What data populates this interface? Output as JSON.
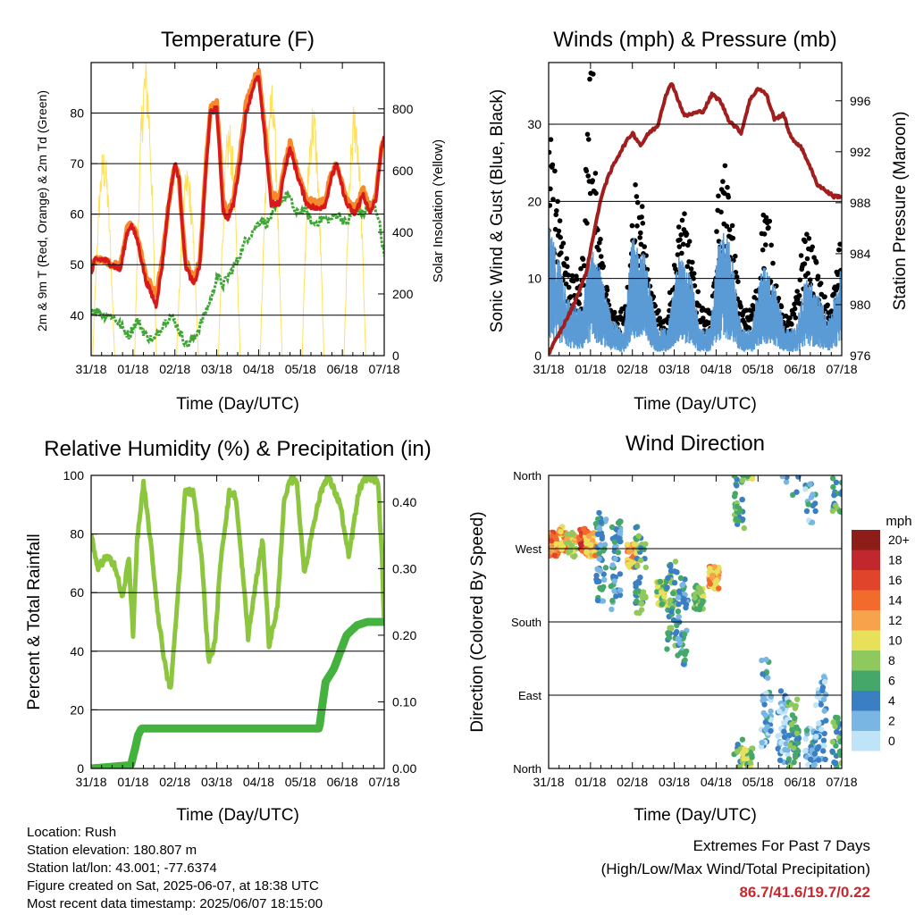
{
  "panels": {
    "temperature": {
      "title": "Temperature (F)",
      "ylabel_left": "2m & 9m T (Red, Orange) & 2m Td (Green)",
      "ylabel_right": "Solar Insolation (Yellow)",
      "xlabel": "Time (Day/UTC)"
    },
    "winds": {
      "title": "Winds (mph) & Pressure (mb)",
      "ylabel_left": "Sonic Wind & Gust (Blue, Black)",
      "ylabel_right": "Station Pressure (Maroon)",
      "xlabel": "Time (Day/UTC)"
    },
    "humidity": {
      "title": "Relative Humidity (%) & Precipitation (in)",
      "ylabel_left": "Percent & Total Rainfall",
      "xlabel": "Time (Day/UTC)"
    },
    "direction": {
      "title": "Wind Direction",
      "ylabel_left": "Direction (Colored By Speed)",
      "xlabel": "Time (Day/UTC)",
      "colorbar_title": "mph"
    }
  },
  "footer": {
    "location": "Location: Rush",
    "elevation": "Station elevation: 180.807 m",
    "latlon": "Station lat/lon: 43.001; -77.6374",
    "created": "Figure created on Sat, 2025-06-07, at 18:38 UTC",
    "latest": "Most recent data timestamp: 2025/06/07 18:15:00",
    "extremes_title": "Extremes For Past 7 Days",
    "extremes_subtitle": "(High/Low/Max Wind/Total Precipitation)",
    "extremes_values": "86.7/41.6/19.7/0.22"
  },
  "chart_data": [
    {
      "id": "temperature",
      "type": "line",
      "x_ticks": [
        "31/18",
        "01/18",
        "02/18",
        "03/18",
        "04/18",
        "05/18",
        "06/18",
        "07/18"
      ],
      "xlim": [
        0,
        7
      ],
      "y_left": {
        "ylim": [
          32,
          90
        ],
        "ticks": [
          40,
          50,
          60,
          70,
          80
        ]
      },
      "y_right": {
        "ylim": [
          0,
          950
        ],
        "ticks": [
          0,
          200,
          400,
          600,
          800
        ]
      },
      "series": [
        {
          "name": "2m T",
          "color": "#d7191c",
          "axis": "left",
          "x": [
            0,
            0.1,
            0.3,
            0.5,
            0.7,
            0.85,
            0.95,
            1.1,
            1.3,
            1.55,
            1.7,
            1.85,
            2.0,
            2.1,
            2.25,
            2.45,
            2.6,
            2.75,
            2.85,
            3.0,
            3.15,
            3.25,
            3.4,
            3.55,
            3.7,
            3.9,
            4.0,
            4.15,
            4.3,
            4.5,
            4.6,
            4.75,
            4.95,
            5.15,
            5.4,
            5.6,
            5.7,
            5.85,
            6.1,
            6.3,
            6.5,
            6.65,
            6.8,
            6.95,
            7.0
          ],
          "y": [
            48,
            51,
            51,
            50,
            49,
            56,
            58,
            55,
            47,
            42,
            50,
            62,
            70,
            67,
            50,
            46,
            50,
            70,
            80,
            81,
            61,
            59,
            62,
            70,
            80,
            86,
            87,
            75,
            62,
            62,
            68,
            73,
            67,
            62,
            61,
            62,
            66,
            70,
            62,
            60,
            64,
            60,
            63,
            74,
            75
          ]
        },
        {
          "name": "9m T",
          "color": "#f7882b",
          "axis": "left",
          "x": [
            0,
            0.1,
            0.3,
            0.5,
            0.7,
            0.85,
            0.95,
            1.1,
            1.3,
            1.55,
            1.7,
            1.85,
            2.0,
            2.1,
            2.25,
            2.45,
            2.6,
            2.75,
            2.85,
            3.0,
            3.15,
            3.25,
            3.4,
            3.55,
            3.7,
            3.9,
            4.0,
            4.15,
            4.3,
            4.5,
            4.6,
            4.75,
            4.95,
            5.15,
            5.4,
            5.6,
            5.7,
            5.85,
            6.1,
            6.3,
            6.5,
            6.65,
            6.8,
            6.95,
            7.0
          ],
          "y": [
            49,
            51,
            51,
            50,
            50,
            57,
            58,
            56,
            48,
            44,
            51,
            62,
            70,
            67,
            51,
            47,
            51,
            71,
            81,
            82,
            63,
            60,
            63,
            72,
            82,
            87,
            88,
            77,
            64,
            63,
            69,
            74,
            68,
            63,
            62,
            63,
            67,
            70,
            63,
            61,
            65,
            61,
            64,
            74,
            75
          ]
        },
        {
          "name": "2m Td",
          "color": "#3fa535",
          "axis": "left",
          "x": [
            0,
            0.1,
            0.3,
            0.5,
            0.7,
            0.9,
            1.1,
            1.3,
            1.5,
            1.7,
            1.9,
            2.05,
            2.15,
            2.3,
            2.5,
            2.7,
            2.9,
            3.0,
            3.15,
            3.3,
            3.5,
            3.7,
            3.9,
            4.05,
            4.2,
            4.4,
            4.55,
            4.7,
            4.9,
            5.1,
            5.3,
            5.5,
            5.7,
            5.9,
            6.1,
            6.3,
            6.5,
            6.7,
            6.85,
            7.0
          ],
          "y": [
            41,
            41,
            40,
            40,
            38,
            36,
            39,
            36,
            35,
            38,
            40,
            38,
            36,
            34,
            36,
            40,
            44,
            48,
            46,
            48,
            51,
            55,
            57,
            59,
            58,
            61,
            63,
            64,
            60,
            61,
            58,
            59,
            59,
            60,
            58,
            61,
            60,
            62,
            60,
            52
          ]
        },
        {
          "name": "Solar Insolation",
          "color": "#ffe15c",
          "axis": "right",
          "peaks_day": [
            0.3,
            1.3,
            2.3,
            3.3,
            4.3,
            5.3,
            6.3
          ],
          "peaks_value": [
            620,
            890,
            560,
            700,
            810,
            760,
            760
          ]
        }
      ]
    },
    {
      "id": "winds",
      "type": "scatter",
      "x_ticks": [
        "31/18",
        "01/18",
        "02/18",
        "03/18",
        "04/18",
        "05/18",
        "06/18",
        "07/18"
      ],
      "xlim": [
        0,
        7
      ],
      "y_left": {
        "ylim": [
          0,
          38
        ],
        "ticks": [
          0,
          10,
          20,
          30
        ]
      },
      "y_right": {
        "ylim": [
          976,
          999
        ],
        "ticks": [
          976,
          980,
          984,
          988,
          992,
          996
        ]
      },
      "series": [
        {
          "name": "Sonic Wind",
          "color": "#5b9bd5",
          "axis": "left",
          "x": [
            0,
            0.3,
            0.5,
            0.8,
            1.0,
            1.2,
            1.5,
            1.8,
            2.0,
            2.3,
            2.6,
            2.85,
            3.1,
            3.4,
            3.6,
            3.85,
            4.1,
            4.35,
            4.6,
            4.85,
            5.1,
            5.4,
            5.65,
            5.9,
            6.15,
            6.4,
            6.7,
            7.0
          ],
          "y": [
            14,
            10,
            6,
            5,
            12,
            10,
            4,
            3,
            13,
            11,
            3,
            3,
            11,
            9,
            3,
            3,
            14,
            12,
            3,
            3,
            10,
            8,
            3,
            3,
            9,
            7,
            4,
            10
          ]
        },
        {
          "name": "Sonic Gust",
          "color": "#000000",
          "axis": "left",
          "x": [
            0,
            0.2,
            0.4,
            0.6,
            0.8,
            0.95,
            1.05,
            1.15,
            1.3,
            1.5,
            1.7,
            1.9,
            2.05,
            2.2,
            2.4,
            2.6,
            2.8,
            3.0,
            3.15,
            3.3,
            3.5,
            3.7,
            3.9,
            4.05,
            4.2,
            4.4,
            4.6,
            4.8,
            5.0,
            5.15,
            5.3,
            5.5,
            5.7,
            5.9,
            6.1,
            6.3,
            6.5,
            6.7,
            6.9,
            7.0
          ],
          "y": [
            25,
            20,
            12,
            8,
            10,
            30,
            35,
            18,
            10,
            5,
            5,
            8,
            20,
            18,
            8,
            5,
            4,
            10,
            16,
            15,
            8,
            5,
            5,
            18,
            21,
            14,
            5,
            5,
            8,
            18,
            14,
            6,
            4,
            6,
            14,
            12,
            8,
            5,
            10,
            15
          ]
        },
        {
          "name": "Station Pressure",
          "color": "#a01e1e",
          "axis": "right",
          "x": [
            0,
            0.3,
            0.6,
            0.9,
            1.1,
            1.3,
            1.55,
            1.8,
            2.0,
            2.2,
            2.4,
            2.6,
            2.8,
            2.95,
            3.1,
            3.25,
            3.45,
            3.7,
            3.9,
            4.1,
            4.3,
            4.6,
            4.8,
            5.0,
            5.2,
            5.4,
            5.6,
            5.8,
            6.0,
            6.2,
            6.4,
            6.6,
            6.8,
            7.0
          ],
          "y": [
            976.2,
            978,
            980,
            982.5,
            986,
            989,
            991,
            992.5,
            993.5,
            992.5,
            993.5,
            994,
            996.5,
            997.4,
            996,
            994.8,
            995,
            995.2,
            996.5,
            996,
            994.5,
            993.5,
            996,
            997,
            996.5,
            994.5,
            995,
            993,
            992.5,
            991.2,
            989.5,
            989,
            988.5,
            988.5
          ]
        }
      ]
    },
    {
      "id": "humidity",
      "type": "line",
      "x_ticks": [
        "31/18",
        "01/18",
        "02/18",
        "03/18",
        "04/18",
        "05/18",
        "06/18",
        "07/18"
      ],
      "xlim": [
        0,
        7
      ],
      "y_left": {
        "ylim": [
          0,
          100
        ],
        "ticks": [
          0,
          20,
          40,
          60,
          80,
          100
        ]
      },
      "y_right": {
        "ylim": [
          0,
          0.44
        ],
        "ticks": [
          "0.00",
          "0.10",
          "0.20",
          "0.30",
          "0.40"
        ]
      },
      "series": [
        {
          "name": "Relative Humidity",
          "color": "#8cc63f",
          "axis": "left",
          "x": [
            0,
            0.15,
            0.35,
            0.55,
            0.75,
            0.9,
            1.0,
            1.1,
            1.25,
            1.4,
            1.6,
            1.8,
            1.9,
            2.05,
            2.25,
            2.45,
            2.65,
            2.8,
            2.95,
            3.1,
            3.3,
            3.45,
            3.6,
            3.75,
            3.95,
            4.1,
            4.25,
            4.45,
            4.6,
            4.75,
            4.9,
            5.1,
            5.3,
            5.5,
            5.65,
            5.8,
            5.95,
            6.15,
            6.4,
            6.6,
            6.85,
            6.95,
            7.0
          ],
          "y": [
            80,
            68,
            72,
            70,
            58,
            72,
            46,
            78,
            97,
            80,
            52,
            32,
            27,
            55,
            95,
            94,
            70,
            37,
            42,
            72,
            94,
            93,
            70,
            45,
            65,
            78,
            42,
            55,
            90,
            98,
            99,
            66,
            83,
            95,
            100,
            95,
            90,
            72,
            95,
            100,
            98,
            70,
            48
          ]
        },
        {
          "name": "Total Rainfall",
          "color": "#45b23f",
          "axis": "right",
          "x": [
            0,
            0.95,
            1.05,
            1.12,
            1.2,
            5.45,
            5.5,
            5.6,
            5.8,
            5.95,
            6.1,
            6.35,
            6.6,
            7.0
          ],
          "y": [
            0,
            0.005,
            0.03,
            0.05,
            0.06,
            0.06,
            0.085,
            0.13,
            0.15,
            0.175,
            0.2,
            0.215,
            0.22,
            0.22
          ]
        }
      ]
    },
    {
      "id": "direction",
      "type": "scatter",
      "x_ticks": [
        "31/18",
        "01/18",
        "02/18",
        "03/18",
        "04/18",
        "05/18",
        "06/18",
        "07/18"
      ],
      "xlim": [
        0,
        7
      ],
      "y_left": {
        "ylim": [
          0,
          360
        ],
        "ticks": [
          "North",
          "East",
          "South",
          "West",
          "North"
        ]
      },
      "colorbar": {
        "labels": [
          "20+",
          "18",
          "16",
          "14",
          "12",
          "10",
          "8",
          "6",
          "4",
          "2",
          "0"
        ],
        "colors": [
          "#8c1d18",
          "#c0282d",
          "#e0452b",
          "#f26b2d",
          "#f7a34c",
          "#e8e05a",
          "#8fc85d",
          "#45a86a",
          "#3a7fc1",
          "#79b6e3",
          "#bfe3f7"
        ]
      },
      "clusters": [
        {
          "x": 0.1,
          "dir": 275,
          "speed": 14
        },
        {
          "x": 0.3,
          "dir": 282,
          "speed": 12
        },
        {
          "x": 0.55,
          "dir": 275,
          "speed": 10
        },
        {
          "x": 0.85,
          "dir": 280,
          "speed": 16
        },
        {
          "x": 1.0,
          "dir": 275,
          "speed": 12
        },
        {
          "x": 1.25,
          "dir": 260,
          "speed": 4
        },
        {
          "x": 1.6,
          "dir": 250,
          "speed": 4
        },
        {
          "x": 2.0,
          "dir": 262,
          "speed": 12
        },
        {
          "x": 2.2,
          "dir": 245,
          "speed": 6
        },
        {
          "x": 2.7,
          "dir": 215,
          "speed": 8
        },
        {
          "x": 2.95,
          "dir": 200,
          "speed": 6
        },
        {
          "x": 3.2,
          "dir": 180,
          "speed": 4
        },
        {
          "x": 3.6,
          "dir": 210,
          "speed": 8
        },
        {
          "x": 3.95,
          "dir": 235,
          "speed": 12
        },
        {
          "x": 4.55,
          "dir": 345,
          "speed": 6
        },
        {
          "x": 4.75,
          "dir": 10,
          "speed": 8
        },
        {
          "x": 5.2,
          "dir": 80,
          "speed": 3
        },
        {
          "x": 5.6,
          "dir": 40,
          "speed": 2
        },
        {
          "x": 5.85,
          "dir": 30,
          "speed": 6
        },
        {
          "x": 6.25,
          "dir": 355,
          "speed": 3
        },
        {
          "x": 6.5,
          "dir": 60,
          "speed": 2
        },
        {
          "x": 6.9,
          "dir": 10,
          "speed": 6
        }
      ]
    }
  ]
}
